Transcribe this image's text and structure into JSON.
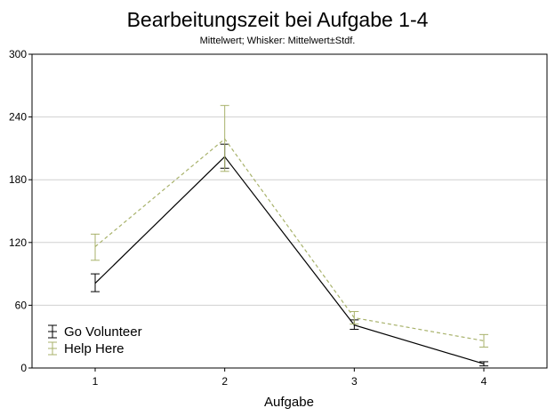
{
  "chart_data": {
    "type": "line",
    "title": "Bearbeitungszeit bei Aufgabe 1-4",
    "subtitle": "Mittelwert; Whisker: Mittelwert±Stdf.",
    "xlabel": "Aufgabe",
    "ylabel": "",
    "categories": [
      "1",
      "2",
      "3",
      "4"
    ],
    "ylim": [
      0,
      300
    ],
    "yticks": [
      "0",
      "60",
      "120",
      "180",
      "240",
      "300"
    ],
    "grid": true,
    "legend_position": "bottom-left",
    "series": [
      {
        "name": "Go Volunteer",
        "color": "#000000",
        "line_style": "solid",
        "values": [
          81,
          202,
          41,
          4
        ],
        "err_low": [
          73,
          191,
          37,
          2
        ],
        "err_high": [
          90,
          214,
          46,
          6
        ]
      },
      {
        "name": "Help Here",
        "color": "#a8b26b",
        "line_style": "dashed",
        "values": [
          116,
          219,
          48,
          26
        ],
        "err_low": [
          103,
          188,
          42,
          20
        ],
        "err_high": [
          128,
          251,
          54,
          32
        ]
      }
    ]
  }
}
